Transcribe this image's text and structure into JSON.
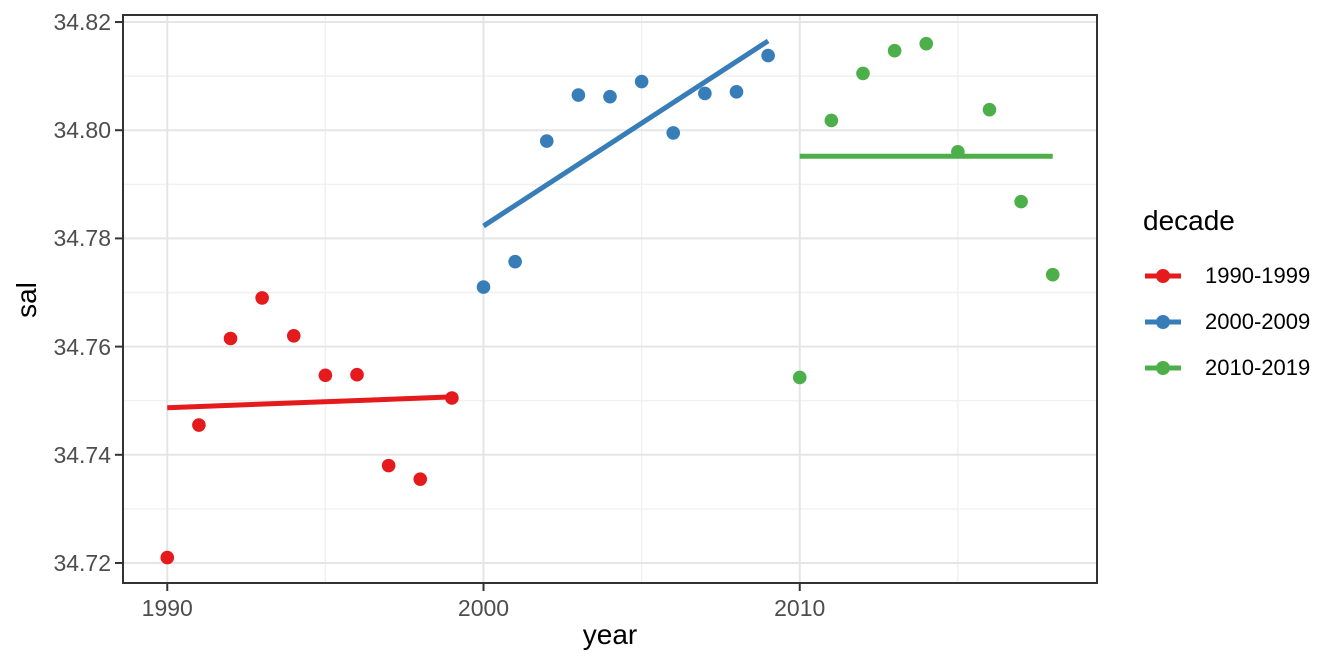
{
  "chart_data": {
    "type": "scatter",
    "title": "",
    "xlabel": "year",
    "ylabel": "sal",
    "legend_title": "decade",
    "legend_position": "right",
    "grid": true,
    "xlim": [
      1988.6,
      2019.4
    ],
    "ylim": [
      34.7163,
      34.8213
    ],
    "x_ticks": [
      1990,
      2000,
      2010
    ],
    "x_minor_gridlines": [
      1995,
      2005,
      2015
    ],
    "y_ticks": [
      34.72,
      34.74,
      34.76,
      34.78,
      34.8,
      34.82
    ],
    "y_minor_gridlines": [
      34.73,
      34.75,
      34.77,
      34.79,
      34.81
    ],
    "series": [
      {
        "name": "1990-1999",
        "color": "#E41A1C",
        "x": [
          1990,
          1991,
          1992,
          1993,
          1994,
          1995,
          1996,
          1997,
          1998,
          1999
        ],
        "y": [
          34.721,
          34.7455,
          34.7615,
          34.769,
          34.762,
          34.7547,
          34.7548,
          34.738,
          34.7355,
          34.7505
        ],
        "trend_line": {
          "x": [
            1990,
            1999
          ],
          "y": [
            34.7487,
            34.7507
          ]
        }
      },
      {
        "name": "2000-2009",
        "color": "#377EB8",
        "x": [
          2000,
          2001,
          2002,
          2003,
          2004,
          2005,
          2006,
          2007,
          2008,
          2009
        ],
        "y": [
          34.771,
          34.7757,
          34.798,
          34.8065,
          34.8062,
          34.809,
          34.7995,
          34.8068,
          34.8071,
          34.8138
        ],
        "trend_line": {
          "x": [
            2000,
            2009
          ],
          "y": [
            34.7823,
            34.8165
          ]
        }
      },
      {
        "name": "2010-2019",
        "color": "#4DAF4A",
        "x": [
          2010,
          2011,
          2012,
          2013,
          2014,
          2015,
          2016,
          2017,
          2018
        ],
        "y": [
          34.7543,
          34.8018,
          34.8105,
          34.8147,
          34.816,
          34.796,
          34.8038,
          34.7868,
          34.7733
        ],
        "trend_line": {
          "x": [
            2010,
            2018
          ],
          "y": [
            34.7952,
            34.7952
          ]
        }
      }
    ]
  }
}
